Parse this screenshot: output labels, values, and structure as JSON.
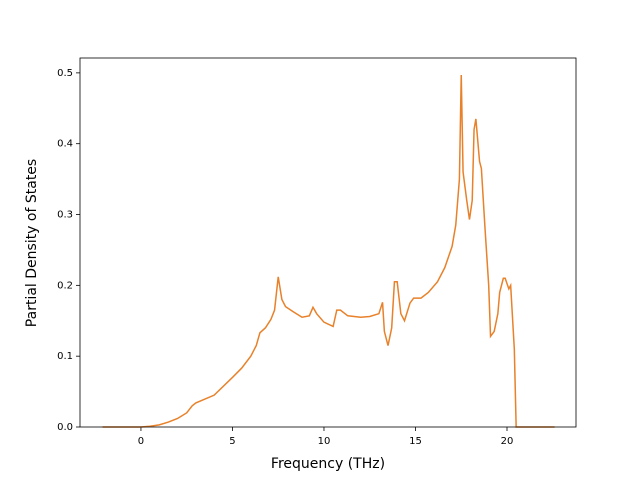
{
  "chart_data": {
    "type": "line",
    "xlabel": "Frequency (THz)",
    "ylabel": "Partial Density of States",
    "x": [
      -2.1,
      0,
      0.5,
      1,
      1.5,
      2,
      2.5,
      2.8,
      3,
      4,
      5,
      5.5,
      6,
      6.3,
      6.5,
      6.8,
      7.1,
      7.3,
      7.5,
      7.7,
      7.9,
      8.3,
      8.8,
      9.2,
      9.4,
      9.6,
      10,
      10.5,
      10.7,
      10.9,
      11.3,
      12,
      12.5,
      13,
      13.2,
      13.3,
      13.5,
      13.7,
      13.85,
      14.0,
      14.2,
      14.4,
      14.7,
      14.9,
      15.3,
      15.7,
      16.2,
      16.6,
      17,
      17.2,
      17.4,
      17.5,
      17.6,
      17.8,
      17.95,
      18.1,
      18.2,
      18.3,
      18.5,
      18.6,
      18.8,
      19.0,
      19.1,
      19.3,
      19.5,
      19.6,
      19.8,
      19.9,
      20.1,
      20.2,
      20.4,
      20.5,
      22.6
    ],
    "values": [
      0,
      0,
      0.001,
      0.003,
      0.007,
      0.012,
      0.02,
      0.03,
      0.034,
      0.045,
      0.07,
      0.083,
      0.1,
      0.115,
      0.133,
      0.14,
      0.152,
      0.165,
      0.212,
      0.18,
      0.17,
      0.163,
      0.155,
      0.157,
      0.169,
      0.16,
      0.148,
      0.142,
      0.165,
      0.165,
      0.157,
      0.155,
      0.156,
      0.16,
      0.176,
      0.135,
      0.115,
      0.14,
      0.205,
      0.205,
      0.16,
      0.15,
      0.175,
      0.182,
      0.182,
      0.19,
      0.205,
      0.225,
      0.255,
      0.285,
      0.35,
      0.497,
      0.36,
      0.32,
      0.293,
      0.32,
      0.42,
      0.435,
      0.375,
      0.365,
      0.28,
      0.2,
      0.128,
      0.135,
      0.16,
      0.19,
      0.21,
      0.21,
      0.195,
      0.2,
      0.11,
      0,
      0
    ],
    "color": "#e8812a",
    "xlim": [
      -3.33,
      23.77
    ],
    "xticks": [
      0,
      5,
      10,
      15,
      20
    ],
    "ylim": [
      0,
      0.521
    ],
    "yticks": [
      {
        "value": 0,
        "label": "0.0"
      },
      0.1,
      0.2,
      0.3,
      0.4,
      0.5
    ]
  }
}
